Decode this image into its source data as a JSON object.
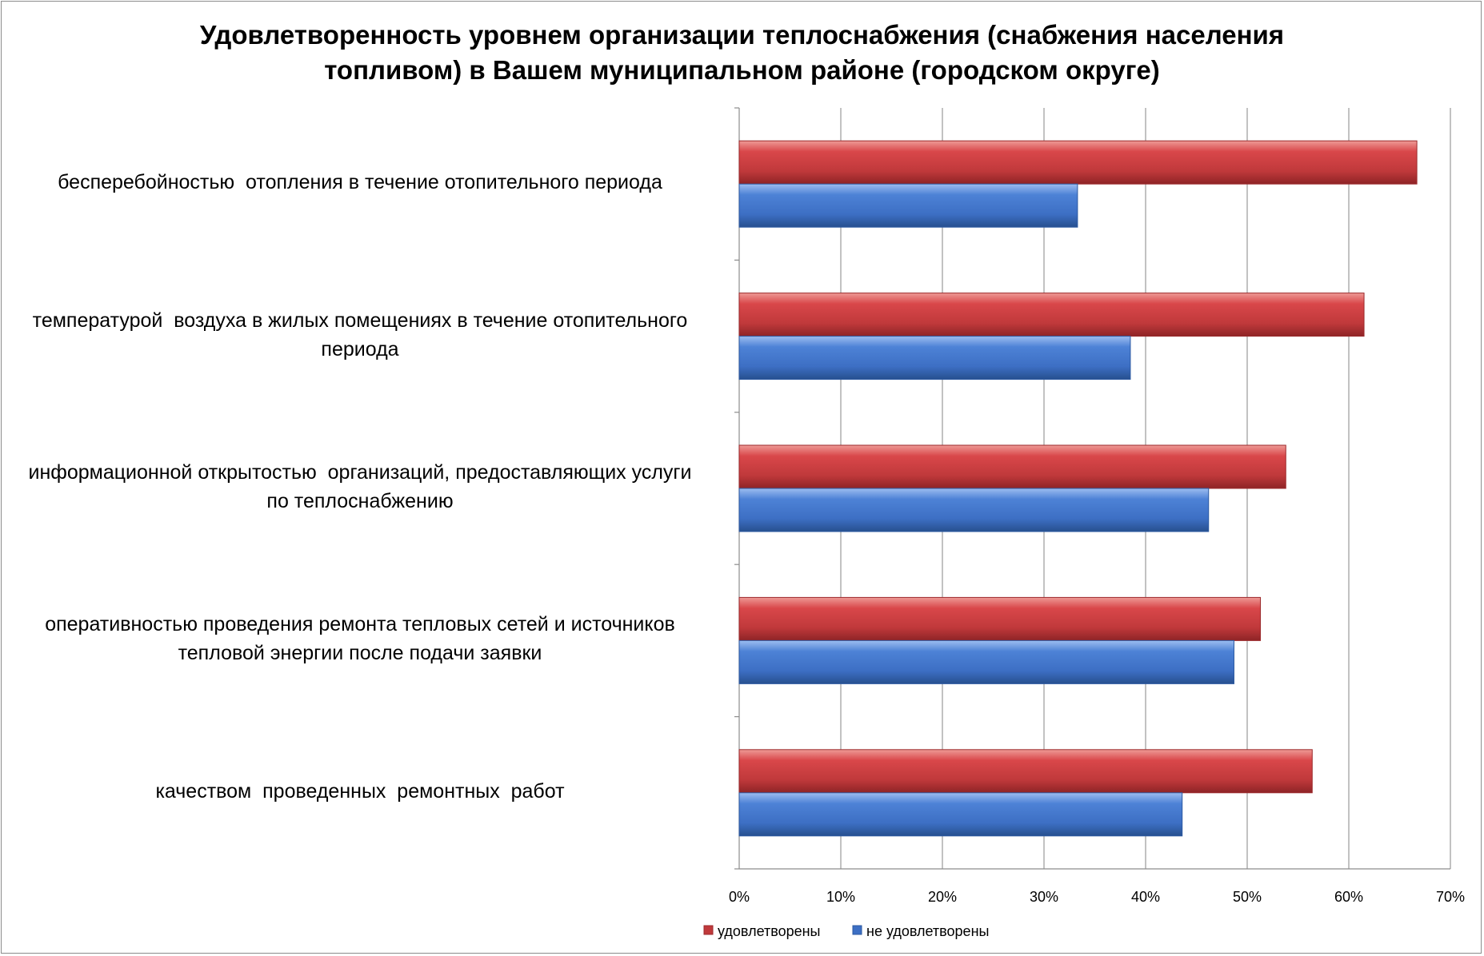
{
  "chart_data": {
    "type": "bar",
    "orientation": "horizontal",
    "title_lines": [
      "Удовлетворенность уровнем организации теплоснабжения (снабжения населения",
      "топливом) в Вашем муниципальном районе (городском округе)"
    ],
    "categories": [
      [
        "бесперебойностью  отопления в течение отопительного периода"
      ],
      [
        "температурой  воздуха в жилых помещениях в течение отопительного",
        "периода"
      ],
      [
        "информационной открытостью  организаций, предоставляющих услуги",
        "по теплоснабжению"
      ],
      [
        "оперативностью проведения ремонта тепловых сетей и источников",
        "тепловой энергии после подачи заявки"
      ],
      [
        "качеством  проведенных  ремонтных  работ"
      ]
    ],
    "series": [
      {
        "name": "удовлетворены",
        "color": "#c0393b",
        "values": [
          66.7,
          61.5,
          53.8,
          51.3,
          56.4
        ]
      },
      {
        "name": "не удовлетворены",
        "color": "#3d6fc4",
        "values": [
          33.3,
          38.5,
          46.2,
          48.7,
          43.6
        ]
      }
    ],
    "xlim": [
      0,
      70
    ],
    "xticks": [
      "0%",
      "10%",
      "20%",
      "30%",
      "40%",
      "50%",
      "60%",
      "70%"
    ],
    "grid": true,
    "legend_position": "bottom"
  }
}
